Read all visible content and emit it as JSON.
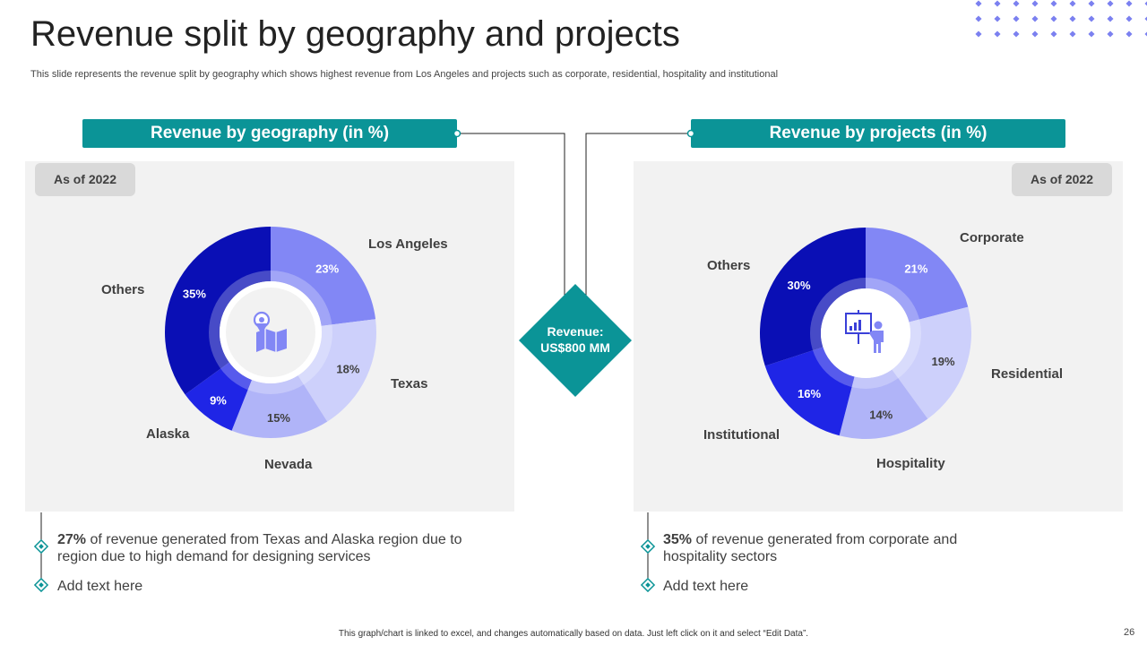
{
  "slide": {
    "title": "Revenue split by geography and projects",
    "subtitle": "This slide represents the revenue split by geography which shows highest revenue from Los Angeles and projects such as corporate, residential, hospitality and institutional",
    "footer": "This graph/chart is linked to excel, and changes automatically based on data. Just left click on it and select “Edit Data”.",
    "page_number": "26"
  },
  "center": {
    "line1": "Revenue:",
    "line2": "US$800 MM"
  },
  "left_panel": {
    "header": "Revenue by geography (in %)",
    "badge": "As of 2022",
    "note_bold": "27%",
    "note_line1": " of revenue  generated from Texas and Alaska region due to",
    "note_line2": "region  due to high demand for designing services",
    "add_text": "Add text here"
  },
  "right_panel": {
    "header": "Revenue by projects (in %)",
    "badge": "As of 2022",
    "note_bold": "35%",
    "note_line1": " of revenue  generated from corporate and",
    "note_line2": "hospitality sectors",
    "add_text": "Add text here"
  },
  "colors": {
    "teal": "#0b9497",
    "panel_bg": "#f2f2f2",
    "badge_bg": "#d9d9d9"
  },
  "icons": {
    "left_center": "map-pin-icon",
    "right_center": "presentation-icon"
  },
  "chart_data": [
    {
      "type": "pie",
      "title": "Revenue by geography (in %)",
      "categories": [
        "Los Angeles",
        "Texas",
        "Nevada",
        "Alaska",
        "Others"
      ],
      "values": [
        23,
        18,
        15,
        9,
        35
      ],
      "labels": [
        "23%",
        "18%",
        "15%",
        "9%",
        "35%"
      ],
      "colors": [
        "#8287f5",
        "#cdd0fb",
        "#b0b4f8",
        "#1f25e6",
        "#0a0fb5"
      ]
    },
    {
      "type": "pie",
      "title": "Revenue by projects (in %)",
      "categories": [
        "Corporate",
        "Residential",
        "Hospitality",
        "Institutional",
        "Others"
      ],
      "values": [
        21,
        19,
        14,
        16,
        30
      ],
      "labels": [
        "21%",
        "19%",
        "14%",
        "16%",
        "30%"
      ],
      "colors": [
        "#8287f5",
        "#cdd0fb",
        "#b0b4f8",
        "#1f25e6",
        "#0a0fb5"
      ]
    }
  ]
}
